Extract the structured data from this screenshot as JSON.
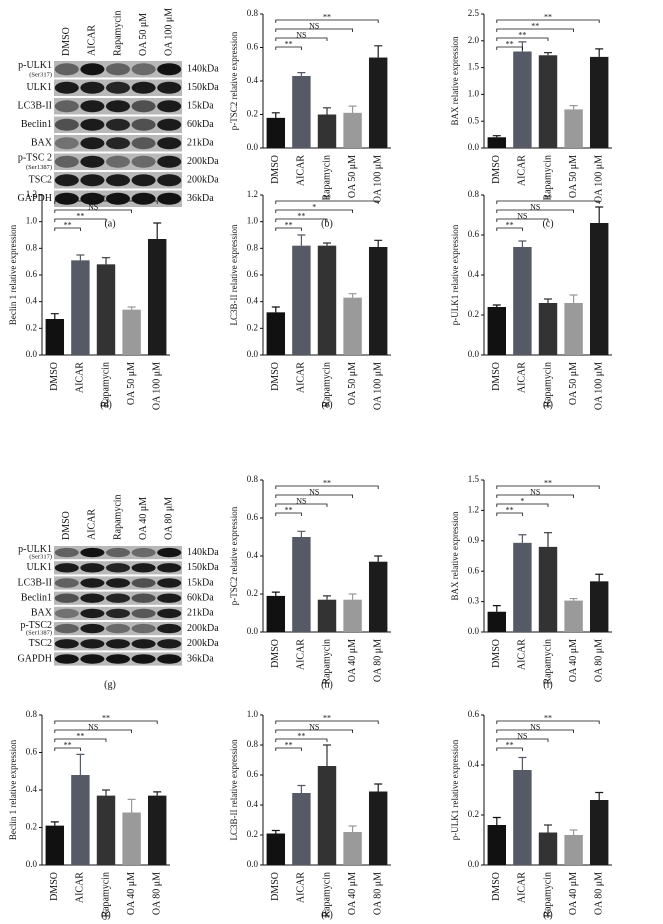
{
  "blots": [
    {
      "panel_label": "(a)",
      "lanes": [
        "DMSO",
        "AICAR",
        "Rapamycin",
        "OA 50 μM",
        "OA 100 μM"
      ],
      "rows": [
        {
          "protein": "p-ULK1",
          "site": "(Ser317)",
          "size": "140kDa"
        },
        {
          "protein": "ULK1",
          "size": "150kDa"
        },
        {
          "protein": "LC3B-II",
          "size": "15kDa"
        },
        {
          "protein": "Beclin1",
          "size": "60kDa"
        },
        {
          "protein": "BAX",
          "size": "21kDa"
        },
        {
          "protein": "p-TSC 2",
          "site": "(Ser1387)",
          "size": "200kDa"
        },
        {
          "protein": "TSC2",
          "size": "200kDa"
        },
        {
          "protein": "GAPDH",
          "size": "36kDa"
        }
      ]
    },
    {
      "panel_label": "(g)",
      "lanes": [
        "DMSO",
        "AICAR",
        "Rapamycin",
        "OA 40 μM",
        "OA 80 μM"
      ],
      "rows": [
        {
          "protein": "p-ULK1",
          "site": "(Ser317)",
          "size": "140kDa"
        },
        {
          "protein": "ULK1",
          "size": "150kDa"
        },
        {
          "protein": "LC3B-II",
          "size": "15kDa"
        },
        {
          "protein": "Beclin1",
          "size": "60kDa"
        },
        {
          "protein": "BAX",
          "size": "21kDa"
        },
        {
          "protein": "p-TSC2",
          "site": "(Ser1387)",
          "size": "200kDa"
        },
        {
          "protein": "TSC2",
          "size": "200kDa"
        },
        {
          "protein": "GAPDH",
          "size": "36kDa"
        }
      ]
    }
  ],
  "chart_data": [
    {
      "type": "bar",
      "panel_label": "(b)",
      "y_label": "p-TSC2 relative expression",
      "categories": [
        "DMSO",
        "AICAR",
        "Rapamycin",
        "OA 50 μM",
        "OA 100 μM"
      ],
      "values": [
        0.18,
        0.43,
        0.2,
        0.21,
        0.54
      ],
      "errors": [
        0.03,
        0.02,
        0.04,
        0.04,
        0.07
      ],
      "colors": [
        "#111111",
        "#555a66",
        "#333333",
        "#9a9a9a",
        "#1c1c1c"
      ],
      "annotations": [
        "**",
        "NS",
        "NS",
        "**"
      ],
      "ylim": [
        0,
        0.8
      ],
      "yticks": [
        {
          "value": 0,
          "label": "0.0"
        },
        0.2,
        0.4,
        0.6,
        0.8
      ]
    },
    {
      "type": "bar",
      "panel_label": "(c)",
      "y_label": "BAX relative expression",
      "categories": [
        "DMSO",
        "AICAR",
        "Rapamycin",
        "OA 50 μM",
        "OA 100 μM"
      ],
      "values": [
        0.2,
        1.8,
        1.73,
        0.72,
        1.7
      ],
      "errors": [
        0.03,
        0.18,
        0.05,
        0.07,
        0.15
      ],
      "colors": [
        "#111111",
        "#555a66",
        "#333333",
        "#9a9a9a",
        "#1c1c1c"
      ],
      "annotations": [
        "**",
        "**",
        "**",
        "**"
      ],
      "ylim": [
        0,
        2.5
      ],
      "yticks": [
        {
          "value": 0,
          "label": "0.0"
        },
        0.5,
        {
          "value": 1,
          "label": "1.0"
        },
        1.5,
        {
          "value": 2,
          "label": "2.0"
        },
        2.5
      ]
    },
    {
      "type": "bar",
      "panel_label": "(d)",
      "y_label": "Beclin 1 relative expression",
      "categories": [
        "DMSO",
        "AICAR",
        "Rapamycin",
        "OA 50 μM",
        "OA 100 μM"
      ],
      "values": [
        0.27,
        0.71,
        0.68,
        0.34,
        0.87
      ],
      "errors": [
        0.04,
        0.04,
        0.05,
        0.02,
        0.12
      ],
      "colors": [
        "#111111",
        "#555a66",
        "#333333",
        "#9a9a9a",
        "#1c1c1c"
      ],
      "annotations": [
        "**",
        "**",
        "NS",
        "**"
      ],
      "ylim": [
        0,
        1.2
      ],
      "yticks": [
        {
          "value": 0,
          "label": "0.0"
        },
        0.2,
        0.4,
        0.6,
        0.8,
        {
          "value": 1,
          "label": "1.0"
        },
        1.2
      ]
    },
    {
      "type": "bar",
      "panel_label": "(e)",
      "y_label": "LC3B-II relative expression",
      "categories": [
        "DMSO",
        "AICAR",
        "Rapamycin",
        "OA 50 μM",
        "OA 100 μM"
      ],
      "values": [
        0.32,
        0.82,
        0.82,
        0.43,
        0.81
      ],
      "errors": [
        0.04,
        0.08,
        0.02,
        0.03,
        0.05
      ],
      "colors": [
        "#111111",
        "#555a66",
        "#333333",
        "#9a9a9a",
        "#1c1c1c"
      ],
      "annotations": [
        "**",
        "**",
        "*",
        "**"
      ],
      "ylim": [
        0,
        1.2
      ],
      "yticks": [
        {
          "value": 0,
          "label": "0.0"
        },
        0.2,
        0.4,
        0.6,
        0.8,
        {
          "value": 1,
          "label": "1.0"
        },
        1.2
      ]
    },
    {
      "type": "bar",
      "panel_label": "(f)",
      "y_label": "p-ULK1 relative expression",
      "categories": [
        "DMSO",
        "AICAR",
        "Rapamycin",
        "OA 50 μM",
        "OA 100 μM"
      ],
      "values": [
        0.24,
        0.54,
        0.26,
        0.26,
        0.66
      ],
      "errors": [
        0.01,
        0.03,
        0.02,
        0.04,
        0.08
      ],
      "colors": [
        "#111111",
        "#555a66",
        "#333333",
        "#9a9a9a",
        "#1c1c1c"
      ],
      "annotations": [
        "**",
        "NS",
        "NS",
        "**"
      ],
      "ylim": [
        0,
        0.8
      ],
      "yticks": [
        {
          "value": 0,
          "label": "0.0"
        },
        0.2,
        0.4,
        0.6,
        0.8
      ]
    },
    {
      "type": "bar",
      "panel_label": "(h)",
      "y_label": "p-TSC2 relative expression",
      "categories": [
        "DMSO",
        "AICAR",
        "Rapamycin",
        "OA 40 μM",
        "OA 80 μM"
      ],
      "values": [
        0.19,
        0.5,
        0.17,
        0.17,
        0.37
      ],
      "errors": [
        0.02,
        0.03,
        0.02,
        0.03,
        0.03
      ],
      "colors": [
        "#111111",
        "#555a66",
        "#333333",
        "#9a9a9a",
        "#1c1c1c"
      ],
      "annotations": [
        "**",
        "NS",
        "NS",
        "**"
      ],
      "ylim": [
        0,
        0.8
      ],
      "yticks": [
        {
          "value": 0,
          "label": "0.0"
        },
        0.2,
        0.4,
        0.6,
        0.8
      ]
    },
    {
      "type": "bar",
      "panel_label": "(i)",
      "y_label": "BAX relative expression",
      "categories": [
        "DMSO",
        "AICAR",
        "Rapamycin",
        "OA 40 μM",
        "OA 80 μM"
      ],
      "values": [
        0.2,
        0.88,
        0.84,
        0.31,
        0.5
      ],
      "errors": [
        0.06,
        0.08,
        0.14,
        0.02,
        0.07
      ],
      "colors": [
        "#111111",
        "#555a66",
        "#333333",
        "#9a9a9a",
        "#1c1c1c"
      ],
      "annotations": [
        "**",
        "*",
        "NS",
        "**"
      ],
      "ylim": [
        0,
        1.5
      ],
      "yticks": [
        {
          "value": 0,
          "label": "0.0"
        },
        0.3,
        0.6,
        0.9,
        1.2,
        1.5
      ]
    },
    {
      "type": "bar",
      "panel_label": "(j)",
      "y_label": "Beclin 1 relative expression",
      "categories": [
        "DMSO",
        "AICAR",
        "Rapamycin",
        "OA 40 μM",
        "OA 80 μM"
      ],
      "values": [
        0.21,
        0.48,
        0.37,
        0.28,
        0.37
      ],
      "errors": [
        0.02,
        0.11,
        0.03,
        0.07,
        0.02
      ],
      "colors": [
        "#111111",
        "#555a66",
        "#333333",
        "#9a9a9a",
        "#1c1c1c"
      ],
      "annotations": [
        "**",
        "**",
        "NS",
        "**"
      ],
      "ylim": [
        0,
        0.8
      ],
      "yticks": [
        {
          "value": 0,
          "label": "0.0"
        },
        0.2,
        0.4,
        0.6,
        0.8
      ]
    },
    {
      "type": "bar",
      "panel_label": "(k)",
      "y_label": "LC3B-II relative expression",
      "categories": [
        "DMSO",
        "AICAR",
        "Rapamycin",
        "OA 40 μM",
        "OA 80 μM"
      ],
      "values": [
        0.21,
        0.48,
        0.66,
        0.22,
        0.49
      ],
      "errors": [
        0.02,
        0.05,
        0.14,
        0.04,
        0.05
      ],
      "colors": [
        "#111111",
        "#555a66",
        "#333333",
        "#9a9a9a",
        "#1c1c1c"
      ],
      "annotations": [
        "**",
        "**",
        "NS",
        "**"
      ],
      "ylim": [
        0,
        1
      ],
      "yticks": [
        {
          "value": 0,
          "label": "0.0"
        },
        0.2,
        0.4,
        0.6,
        0.8,
        {
          "value": 1,
          "label": "1.0"
        }
      ]
    },
    {
      "type": "bar",
      "panel_label": "(l)",
      "y_label": "p-ULK1 relative expression",
      "categories": [
        "DMSO",
        "AICAR",
        "Rapamycin",
        "OA 40 μM",
        "OA 80 μM"
      ],
      "values": [
        0.16,
        0.38,
        0.13,
        0.12,
        0.26
      ],
      "errors": [
        0.03,
        0.05,
        0.03,
        0.02,
        0.03
      ],
      "colors": [
        "#111111",
        "#555a66",
        "#333333",
        "#9a9a9a",
        "#1c1c1c"
      ],
      "annotations": [
        "**",
        "NS",
        "NS",
        "**"
      ],
      "ylim": [
        0,
        0.6
      ],
      "yticks": [
        {
          "value": 0,
          "label": "0.0"
        },
        0.2,
        0.4,
        0.6
      ]
    }
  ]
}
